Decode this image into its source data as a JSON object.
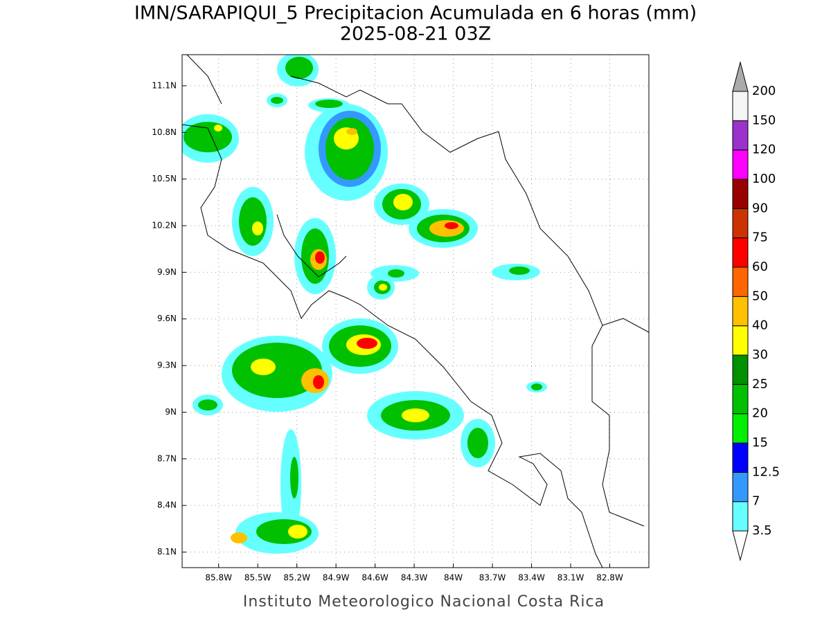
{
  "map": {
    "title": "IMN/SARAPIQUI_5 Precipitacion Acumulada en 6 horas (mm)",
    "subtitle": "2025-08-21 03Z",
    "credit": "Instituto Meteorologico Nacional Costa Rica",
    "xlim": [
      -86.08,
      -82.5
    ],
    "ylim": [
      8.0,
      11.3
    ],
    "grid": true,
    "xticks": [
      {
        "value": -85.8,
        "label": "85.8W"
      },
      {
        "value": -85.5,
        "label": "85.5W"
      },
      {
        "value": -85.2,
        "label": "85.2W"
      },
      {
        "value": -84.9,
        "label": "84.9W"
      },
      {
        "value": -84.6,
        "label": "84.6W"
      },
      {
        "value": -84.3,
        "label": "84.3W"
      },
      {
        "value": -84.0,
        "label": "84W"
      },
      {
        "value": -83.7,
        "label": "83.7W"
      },
      {
        "value": -83.4,
        "label": "83.4W"
      },
      {
        "value": -83.1,
        "label": "83.1W"
      },
      {
        "value": -82.8,
        "label": "82.8W"
      }
    ],
    "yticks": [
      {
        "value": 11.1,
        "label": "11.1N"
      },
      {
        "value": 10.8,
        "label": "10.8N"
      },
      {
        "value": 10.5,
        "label": "10.5N"
      },
      {
        "value": 10.2,
        "label": "10.2N"
      },
      {
        "value": 9.9,
        "label": "9.9N"
      },
      {
        "value": 9.6,
        "label": "9.6N"
      },
      {
        "value": 9.3,
        "label": "9.3N"
      },
      {
        "value": 9.0,
        "label": "9N"
      },
      {
        "value": 8.7,
        "label": "8.7N"
      },
      {
        "value": 8.4,
        "label": "8.4N"
      },
      {
        "value": 8.1,
        "label": "8.1N"
      }
    ],
    "colorbar": {
      "levels": [
        3.5,
        7,
        12.5,
        15,
        20,
        25,
        30,
        40,
        50,
        60,
        75,
        90,
        100,
        120,
        150,
        200
      ],
      "colors": [
        "#66ffff",
        "#3399ff",
        "#0000ff",
        "#00ee00",
        "#00c000",
        "#009000",
        "#ffff00",
        "#ffc000",
        "#ff6600",
        "#ff0000",
        "#cc3300",
        "#990000",
        "#ff00ff",
        "#9933cc",
        "#f5f5f5"
      ],
      "under_color": "#ffffff",
      "over_color": "#aaaaaa"
    }
  }
}
